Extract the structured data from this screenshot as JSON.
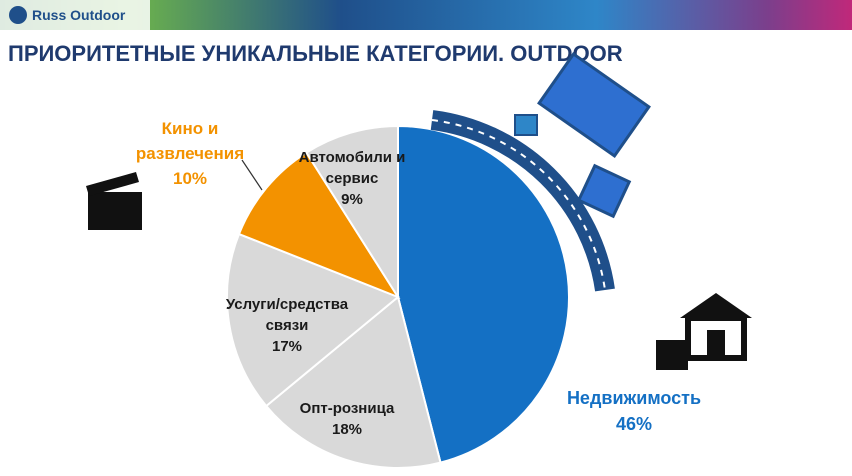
{
  "brand": "Russ Outdoor",
  "chart_data": {
    "type": "pie",
    "title": "ПРИОРИТЕТНЫЕ УНИКАЛЬНЫЕ КАТЕГОРИИ. OUTDOOR",
    "categories": [
      "Недвижимость",
      "Опт-розница",
      "Услуги/средства связи",
      "Кино и развлечения",
      "Автомобили и сервис"
    ],
    "values": [
      46,
      18,
      17,
      10,
      9
    ],
    "value_labels": [
      "46%",
      "18%",
      "17%",
      "10%",
      "9%"
    ],
    "colors": [
      "#1470c4",
      "#d9d9d9",
      "#d9d9d9",
      "#f39200",
      "#d9d9d9"
    ],
    "label_colors": [
      "#1470c4",
      "#1a1a1a",
      "#1a1a1a",
      "#f39200",
      "#1a1a1a"
    ]
  }
}
